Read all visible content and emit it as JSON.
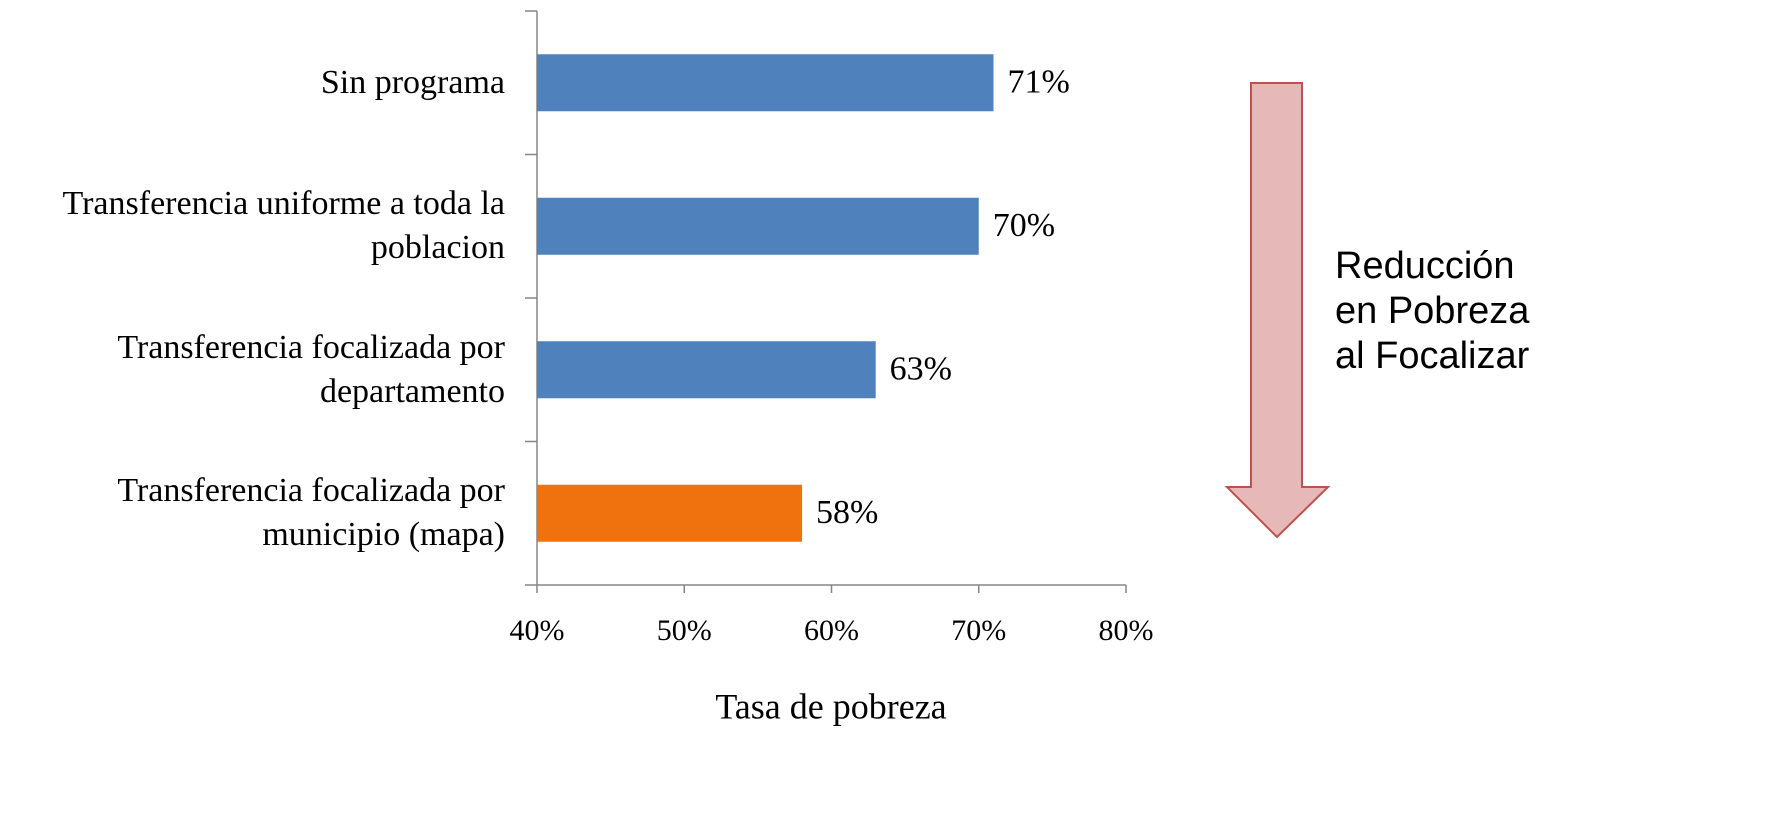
{
  "chart_data": {
    "type": "barh",
    "categories": [
      "Sin programa",
      "Transferencia uniforme a toda la poblacion",
      "Transferencia focalizada por departamento",
      "Transferencia focalizada por municipio (mapa)"
    ],
    "values": [
      71,
      70,
      63,
      58
    ],
    "value_labels": [
      "71%",
      "70%",
      "63%",
      "58%"
    ],
    "colors": [
      "#4f81bd",
      "#4f81bd",
      "#4f81bd",
      "#f0720f"
    ],
    "xlim": [
      40,
      80
    ],
    "xticks": [
      {
        "value": 40,
        "label": "40%"
      },
      {
        "value": 50,
        "label": "50%"
      },
      {
        "value": 60,
        "label": "60%"
      },
      {
        "value": 70,
        "label": "70%"
      },
      {
        "value": 80,
        "label": "80%"
      }
    ],
    "xlabel": "Tasa de pobreza",
    "annotation": [
      "Reducción",
      "en Pobreza",
      "al Focalizar"
    ]
  }
}
